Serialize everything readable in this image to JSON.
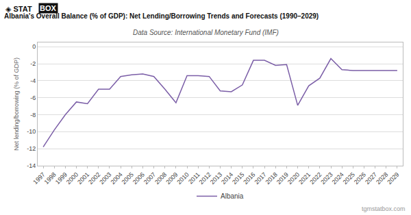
{
  "chart_data": {
    "type": "line",
    "title": "Albania's Overall Balance (% of GDP): Net Lending/Borrowing Trends and Forecasts (1990–2029)",
    "subtitle": "Data Source: International Monetary Fund (IMF)",
    "ylabel": "Net lending/borrowing (% of GDP)",
    "annotations": [
      "◈ STAT",
      "BOX",
      "tgmstatbox.com"
    ],
    "x": [
      1997,
      1998,
      1999,
      2000,
      2001,
      2002,
      2003,
      2004,
      2005,
      2006,
      2007,
      2008,
      2009,
      2010,
      2011,
      2012,
      2013,
      2014,
      2015,
      2016,
      2017,
      2018,
      2019,
      2020,
      2021,
      2022,
      2023,
      2024,
      2025,
      2026,
      2027,
      2028,
      2029
    ],
    "series": [
      {
        "name": "Albania",
        "color": "#7B5EA7",
        "values": [
          -11.8,
          -9.8,
          -8.0,
          -6.5,
          -6.7,
          -5.0,
          -5.0,
          -3.5,
          -3.3,
          -3.2,
          -3.5,
          -5.0,
          -6.6,
          -3.4,
          -3.4,
          -3.5,
          -5.2,
          -5.3,
          -4.5,
          -1.6,
          -1.6,
          -2.2,
          -2.1,
          -6.9,
          -4.6,
          -3.7,
          -1.4,
          -2.7,
          -2.8,
          -2.8,
          -2.8,
          -2.8,
          -2.8
        ]
      }
    ],
    "xlim": [
      1996.5,
      2029.5
    ],
    "xticks": [
      1997,
      1998,
      1999,
      2000,
      2001,
      2002,
      2003,
      2004,
      2005,
      2006,
      2007,
      2008,
      2009,
      2010,
      2011,
      2012,
      2013,
      2014,
      2015,
      2016,
      2017,
      2018,
      2019,
      2020,
      2021,
      2022,
      2023,
      2024,
      2025,
      2026,
      2027,
      2028,
      2029
    ],
    "ylim": [
      -14,
      0.5
    ],
    "yticks": [
      0,
      -2,
      -4,
      -6,
      -8,
      -10,
      -12,
      -14
    ],
    "grid": "y",
    "legend": "bottom"
  }
}
